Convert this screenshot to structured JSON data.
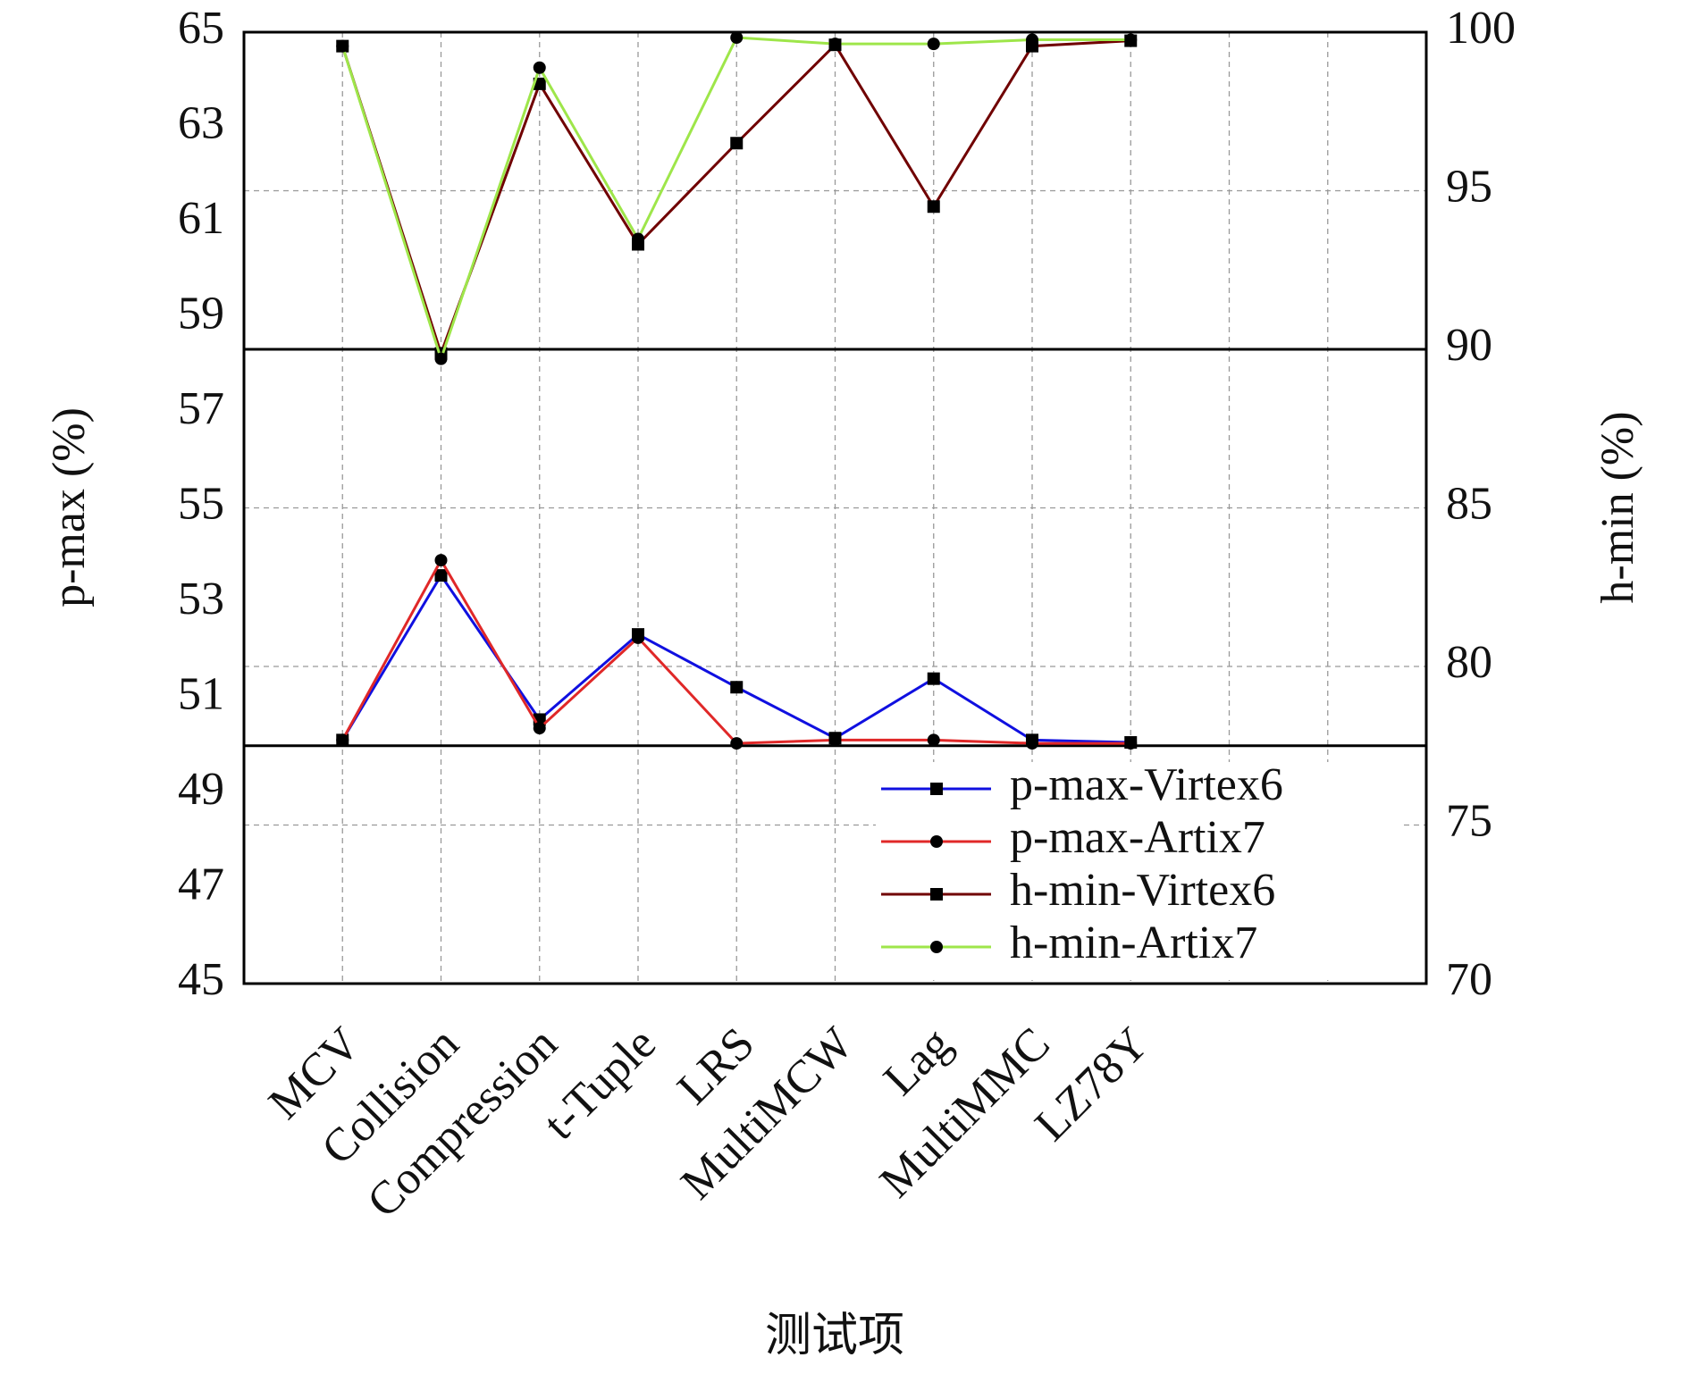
{
  "chart_data": {
    "type": "line",
    "x_label": "测试项",
    "y_label": "p-max (%)",
    "y2_label": "h-min (%)",
    "categories": [
      "MCV",
      "Collision",
      "Compression",
      "t-Tuple",
      "LRS",
      "MultiMCW",
      "Lag",
      "MultiMMC",
      "LZ78Y",
      null,
      null
    ],
    "series": [
      {
        "name": "p-max-Virtex6",
        "color": "#1010e0",
        "marker": "square",
        "axis": "y",
        "values": [
          50.12,
          53.58,
          50.55,
          52.34,
          51.23,
          50.16,
          51.41,
          50.12,
          50.07,
          null,
          null
        ]
      },
      {
        "name": "p-max-Artix7",
        "color": "#e02828",
        "marker": "circle",
        "axis": "y",
        "values": [
          50.12,
          53.9,
          50.37,
          52.27,
          50.05,
          50.12,
          50.12,
          50.05,
          50.05,
          null,
          null
        ]
      },
      {
        "name": "h-min-Virtex6",
        "color": "#700000",
        "marker": "square",
        "axis": "y2",
        "values": [
          99.56,
          89.87,
          98.37,
          93.31,
          96.5,
          99.6,
          94.5,
          99.56,
          99.73,
          null,
          null
        ]
      },
      {
        "name": "h-min-Artix7",
        "color": "#9ee64a",
        "marker": "circle",
        "axis": "y2",
        "values": [
          99.56,
          89.7,
          98.88,
          93.48,
          99.83,
          99.63,
          99.63,
          99.76,
          99.76,
          null,
          null
        ]
      }
    ],
    "ylim": [
      45,
      65
    ],
    "yticks": [
      45,
      47,
      49,
      51,
      53,
      55,
      57,
      59,
      61,
      63,
      65
    ],
    "y2lim": [
      70,
      100
    ],
    "y2ticks": [
      70,
      75,
      80,
      85,
      90,
      95,
      100
    ],
    "hlines": [
      {
        "axis": "y",
        "value": 50
      },
      {
        "axis": "y2",
        "value": 90
      }
    ],
    "grid": true,
    "legend": "lower right"
  }
}
